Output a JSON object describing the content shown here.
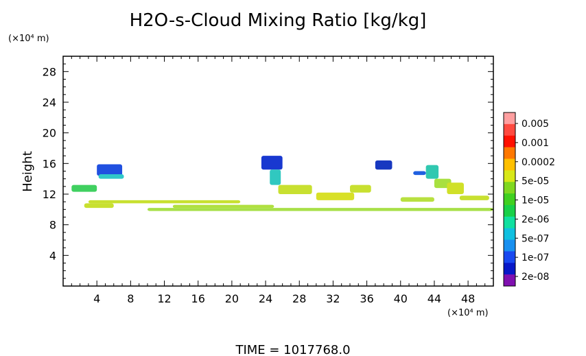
{
  "chart_data": {
    "type": "heatmap",
    "title": "H2O-s-Cloud Mixing Ratio [kg/kg]",
    "ylabel": "Height",
    "y_unit_label": "(×10⁴ m)",
    "x_unit_label": "(×10⁴ m)",
    "xlim": [
      0,
      51
    ],
    "ylim": [
      0,
      30
    ],
    "x_ticks": [
      4,
      8,
      12,
      16,
      20,
      24,
      28,
      32,
      36,
      40,
      44,
      48
    ],
    "y_ticks": [
      4,
      8,
      12,
      16,
      20,
      24,
      28
    ],
    "time_label": "TIME = 1017768.0",
    "colorbar": {
      "labels": [
        "0.005",
        "0.001",
        "0.0002",
        "5e-05",
        "1e-05",
        "2e-06",
        "5e-07",
        "1e-07",
        "2e-08"
      ],
      "colors": [
        "#ff9fa0",
        "#ff4a40",
        "#ff1000",
        "#ff7800",
        "#ffc000",
        "#d8e818",
        "#80d820",
        "#40d020",
        "#18d048",
        "#10e0a0",
        "#10c0e0",
        "#1890f0",
        "#1848f0",
        "#0818c8",
        "#8010b0"
      ]
    },
    "regions": [
      {
        "x": [
          10.0,
          51.0
        ],
        "y": [
          9.8,
          10.2
        ],
        "color": "#a8e048"
      },
      {
        "x": [
          3.0,
          21.0
        ],
        "y": [
          10.8,
          11.2
        ],
        "color": "#c8e030"
      },
      {
        "x": [
          13.0,
          25.0
        ],
        "y": [
          10.2,
          10.6
        ],
        "color": "#b0e040"
      },
      {
        "x": [
          2.5,
          6.0
        ],
        "y": [
          10.2,
          10.8
        ],
        "color": "#c8e030"
      },
      {
        "x": [
          1.0,
          4.0
        ],
        "y": [
          12.3,
          13.2
        ],
        "color": "#40d060"
      },
      {
        "x": [
          4.0,
          7.0
        ],
        "y": [
          14.4,
          15.9
        ],
        "color": "#2050e0"
      },
      {
        "x": [
          4.2,
          7.2
        ],
        "y": [
          14.0,
          14.6
        ],
        "color": "#30c8c8"
      },
      {
        "x": [
          23.5,
          26.0
        ],
        "y": [
          15.2,
          17.0
        ],
        "color": "#1838d0"
      },
      {
        "x": [
          24.5,
          25.8
        ],
        "y": [
          13.2,
          15.2
        ],
        "color": "#30c8c0"
      },
      {
        "x": [
          25.5,
          29.5
        ],
        "y": [
          12.0,
          13.2
        ],
        "color": "#c8e030"
      },
      {
        "x": [
          30.0,
          34.5
        ],
        "y": [
          11.2,
          12.2
        ],
        "color": "#d8e028"
      },
      {
        "x": [
          34.0,
          36.5
        ],
        "y": [
          12.2,
          13.2
        ],
        "color": "#c8e030"
      },
      {
        "x": [
          37.0,
          39.0
        ],
        "y": [
          15.2,
          16.4
        ],
        "color": "#1838c0"
      },
      {
        "x": [
          41.5,
          43.0
        ],
        "y": [
          14.5,
          15.0
        ],
        "color": "#2060e0"
      },
      {
        "x": [
          43.0,
          44.5
        ],
        "y": [
          14.0,
          15.8
        ],
        "color": "#30c8b0"
      },
      {
        "x": [
          44.0,
          46.0
        ],
        "y": [
          12.8,
          14.0
        ],
        "color": "#a8e040"
      },
      {
        "x": [
          45.5,
          47.5
        ],
        "y": [
          12.0,
          13.5
        ],
        "color": "#d0e028"
      },
      {
        "x": [
          47.0,
          50.5
        ],
        "y": [
          11.2,
          11.8
        ],
        "color": "#c8e030"
      },
      {
        "x": [
          40.0,
          44.0
        ],
        "y": [
          11.0,
          11.6
        ],
        "color": "#b8e040"
      }
    ]
  }
}
